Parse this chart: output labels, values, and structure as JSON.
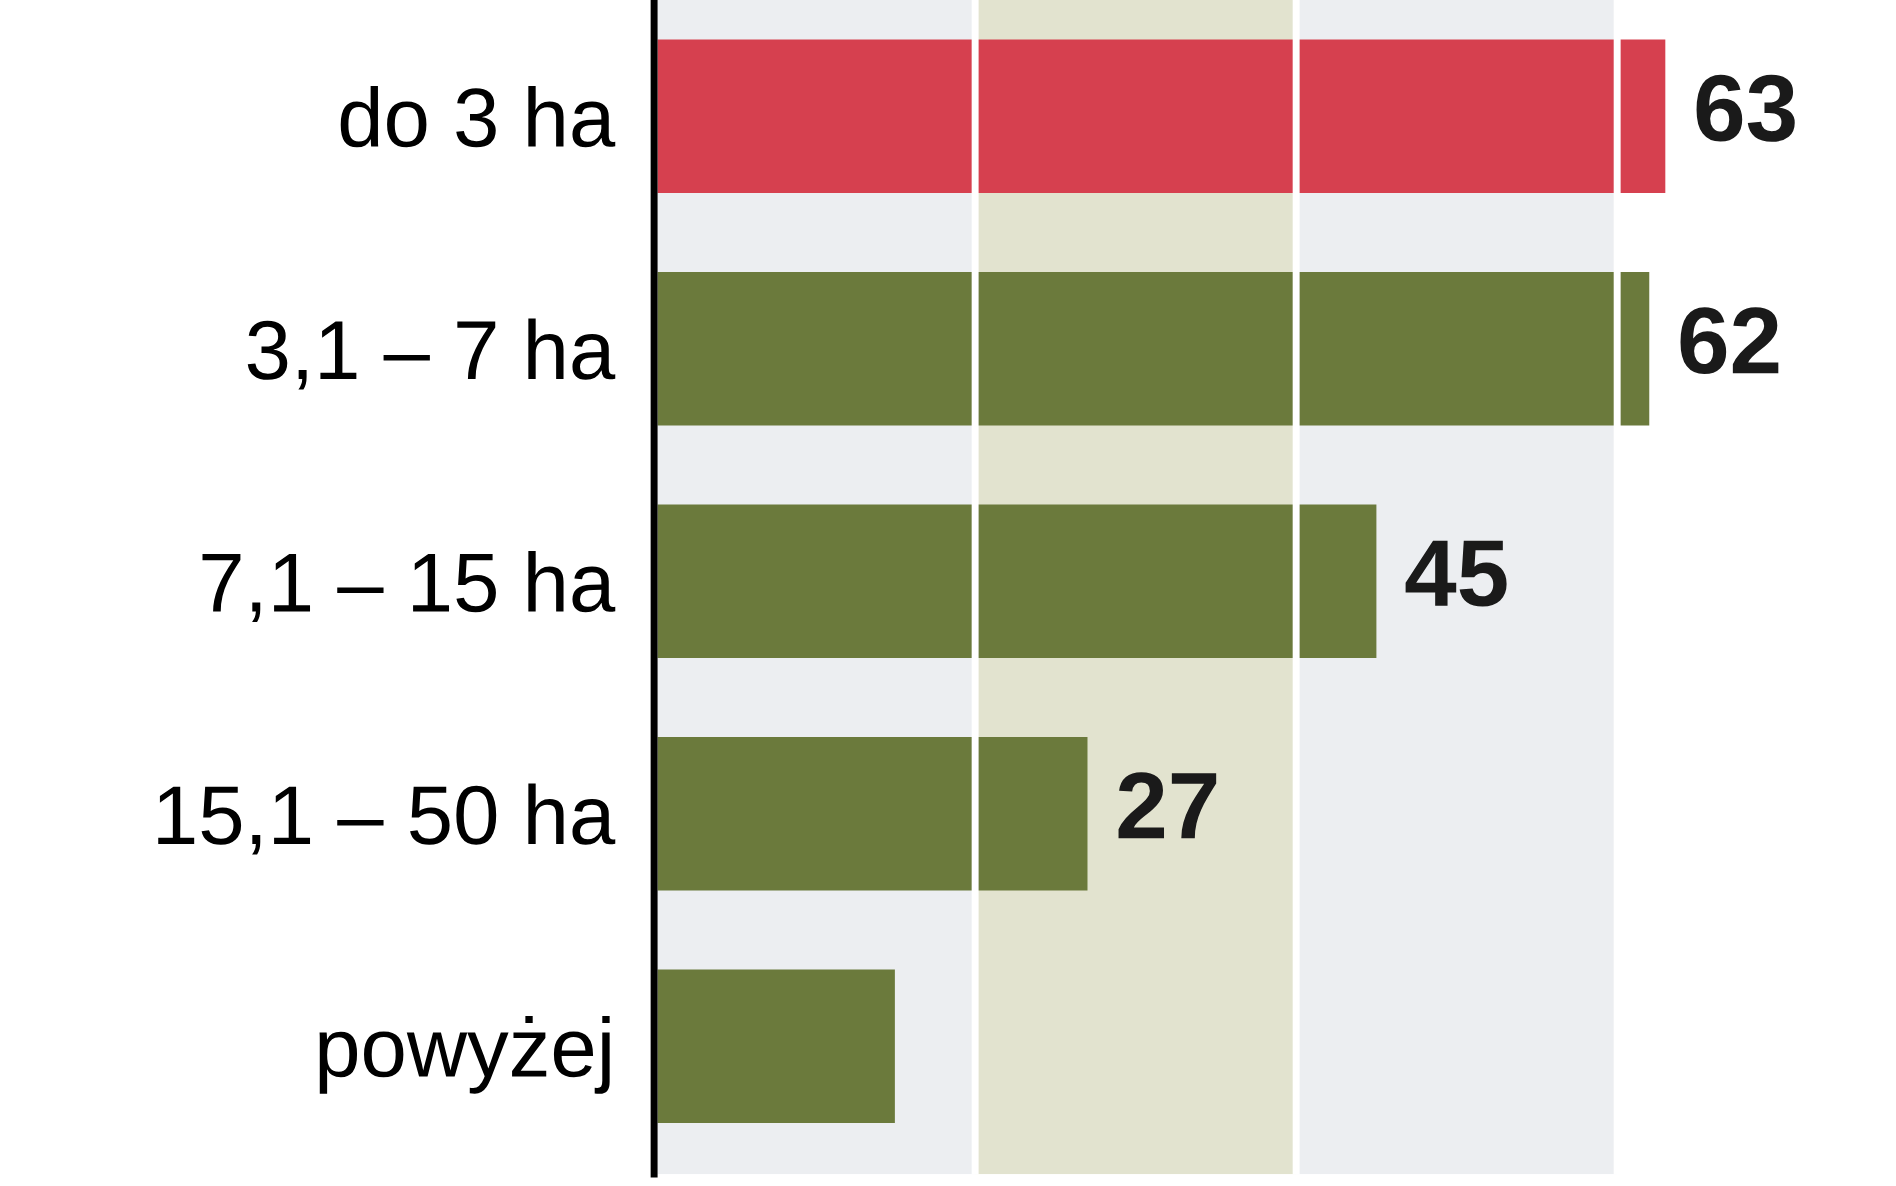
{
  "chart_data": {
    "type": "bar",
    "orientation": "horizontal",
    "categories": [
      "do 3 ha",
      "3,1 – 7 ha",
      "7,1 – 15 ha",
      "15,1 – 50 ha",
      "powyżej"
    ],
    "values": [
      63,
      62,
      45,
      27,
      15
    ],
    "colors": [
      "#d6404f",
      "#6b7a3c",
      "#6b7a3c",
      "#6b7a3c",
      "#6b7a3c"
    ],
    "value_labels": [
      "63",
      "62",
      "45",
      "27",
      null
    ],
    "xticks": [
      {
        "value": 0,
        "label": null
      },
      {
        "value": 20,
        "label": null
      },
      {
        "value": 40,
        "label": null
      },
      {
        "value": 60,
        "label": null
      }
    ],
    "bands": [
      {
        "axis": "x",
        "from": 0,
        "to": 20,
        "color": "#eceef1"
      },
      {
        "axis": "x",
        "from": 20,
        "to": 40,
        "color": "#e2e3cf"
      },
      {
        "axis": "x",
        "from": 40,
        "to": 60,
        "color": "#eceef1"
      }
    ],
    "grid": "x",
    "tick_labels": "y"
  }
}
